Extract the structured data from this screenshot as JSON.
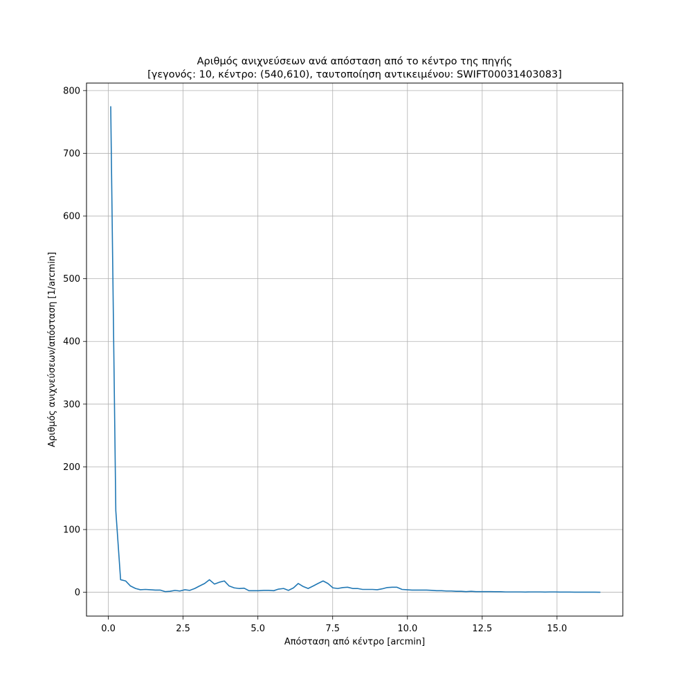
{
  "chart_data": {
    "type": "line",
    "title_line1": "Αριθμός ανιχνεύσεων ανά απόσταση από το κέντρο της πηγής",
    "title_line2": "[γεγονός: 10, κέντρο: (540,610), ταυτοποίηση αντικειμένου: SWIFT00031403083]",
    "xlabel": "Απόσταση από κέντρο [arcmin]",
    "ylabel": "Αριθμός ανιχνεύσεων/απόσταση [1/arcmin]",
    "xlim": [
      -0.73,
      17.2
    ],
    "ylim": [
      -38,
      812
    ],
    "x_ticks": [
      0.0,
      2.5,
      5.0,
      7.5,
      10.0,
      12.5,
      15.0
    ],
    "x_tick_labels": [
      "0.0",
      "2.5",
      "5.0",
      "7.5",
      "10.0",
      "12.5",
      "15.0"
    ],
    "y_ticks": [
      0,
      100,
      200,
      300,
      400,
      500,
      600,
      700,
      800
    ],
    "y_tick_labels": [
      "0",
      "100",
      "200",
      "300",
      "400",
      "500",
      "600",
      "700",
      "800"
    ],
    "grid": true,
    "line_color": "#1f77b4",
    "series": [
      {
        "x": [
          0.08,
          0.25,
          0.41,
          0.58,
          0.74,
          0.91,
          1.07,
          1.24,
          1.4,
          1.57,
          1.73,
          1.9,
          2.06,
          2.23,
          2.39,
          2.56,
          2.72,
          2.89,
          3.05,
          3.22,
          3.38,
          3.55,
          3.71,
          3.88,
          4.04,
          4.21,
          4.37,
          4.54,
          4.7,
          4.87,
          5.03,
          5.2,
          5.36,
          5.53,
          5.69,
          5.86,
          6.02,
          6.19,
          6.35,
          6.52,
          6.68,
          6.85,
          7.01,
          7.18,
          7.34,
          7.51,
          7.67,
          7.84,
          8.0,
          8.17,
          8.33,
          8.5,
          8.66,
          8.83,
          8.99,
          9.16,
          9.32,
          9.49,
          9.65,
          9.82,
          9.98,
          10.15,
          10.31,
          10.48,
          10.64,
          10.81,
          10.97,
          11.14,
          11.3,
          11.47,
          11.63,
          11.8,
          11.96,
          12.13,
          12.29,
          12.46,
          12.62,
          12.79,
          12.95,
          13.12,
          13.28,
          13.45,
          13.61,
          13.78,
          13.94,
          14.11,
          14.27,
          14.44,
          14.6,
          14.77,
          14.93,
          15.1,
          15.26,
          15.43,
          15.59,
          15.76,
          15.92,
          16.09,
          16.25,
          16.45
        ],
        "y": [
          775,
          130,
          20,
          18,
          10,
          6,
          4,
          4.5,
          4,
          3.5,
          3.5,
          1,
          1.5,
          3,
          2,
          4,
          3,
          6,
          10,
          14,
          20,
          13,
          16,
          18,
          10,
          7,
          6,
          6.5,
          2.5,
          2.5,
          2.5,
          3,
          3,
          2.5,
          5,
          6,
          3,
          7,
          14,
          9,
          6,
          10,
          14,
          18,
          14,
          7,
          6,
          7.5,
          8,
          6,
          6,
          4.5,
          4.5,
          4.5,
          4,
          5.5,
          7.5,
          8,
          8,
          4.5,
          4,
          3.5,
          3.5,
          3.5,
          3.5,
          3,
          2.5,
          2.5,
          2,
          2,
          1.5,
          1.5,
          1,
          1.5,
          1,
          1,
          1,
          1,
          0.8,
          0.8,
          0.5,
          0.5,
          0.5,
          0.5,
          0.3,
          0.5,
          0.5,
          0.5,
          0.3,
          0.5,
          0.5,
          0.3,
          0.3,
          0.3,
          0.2,
          0.2,
          0.2,
          0.2,
          0.2,
          0
        ]
      }
    ]
  }
}
